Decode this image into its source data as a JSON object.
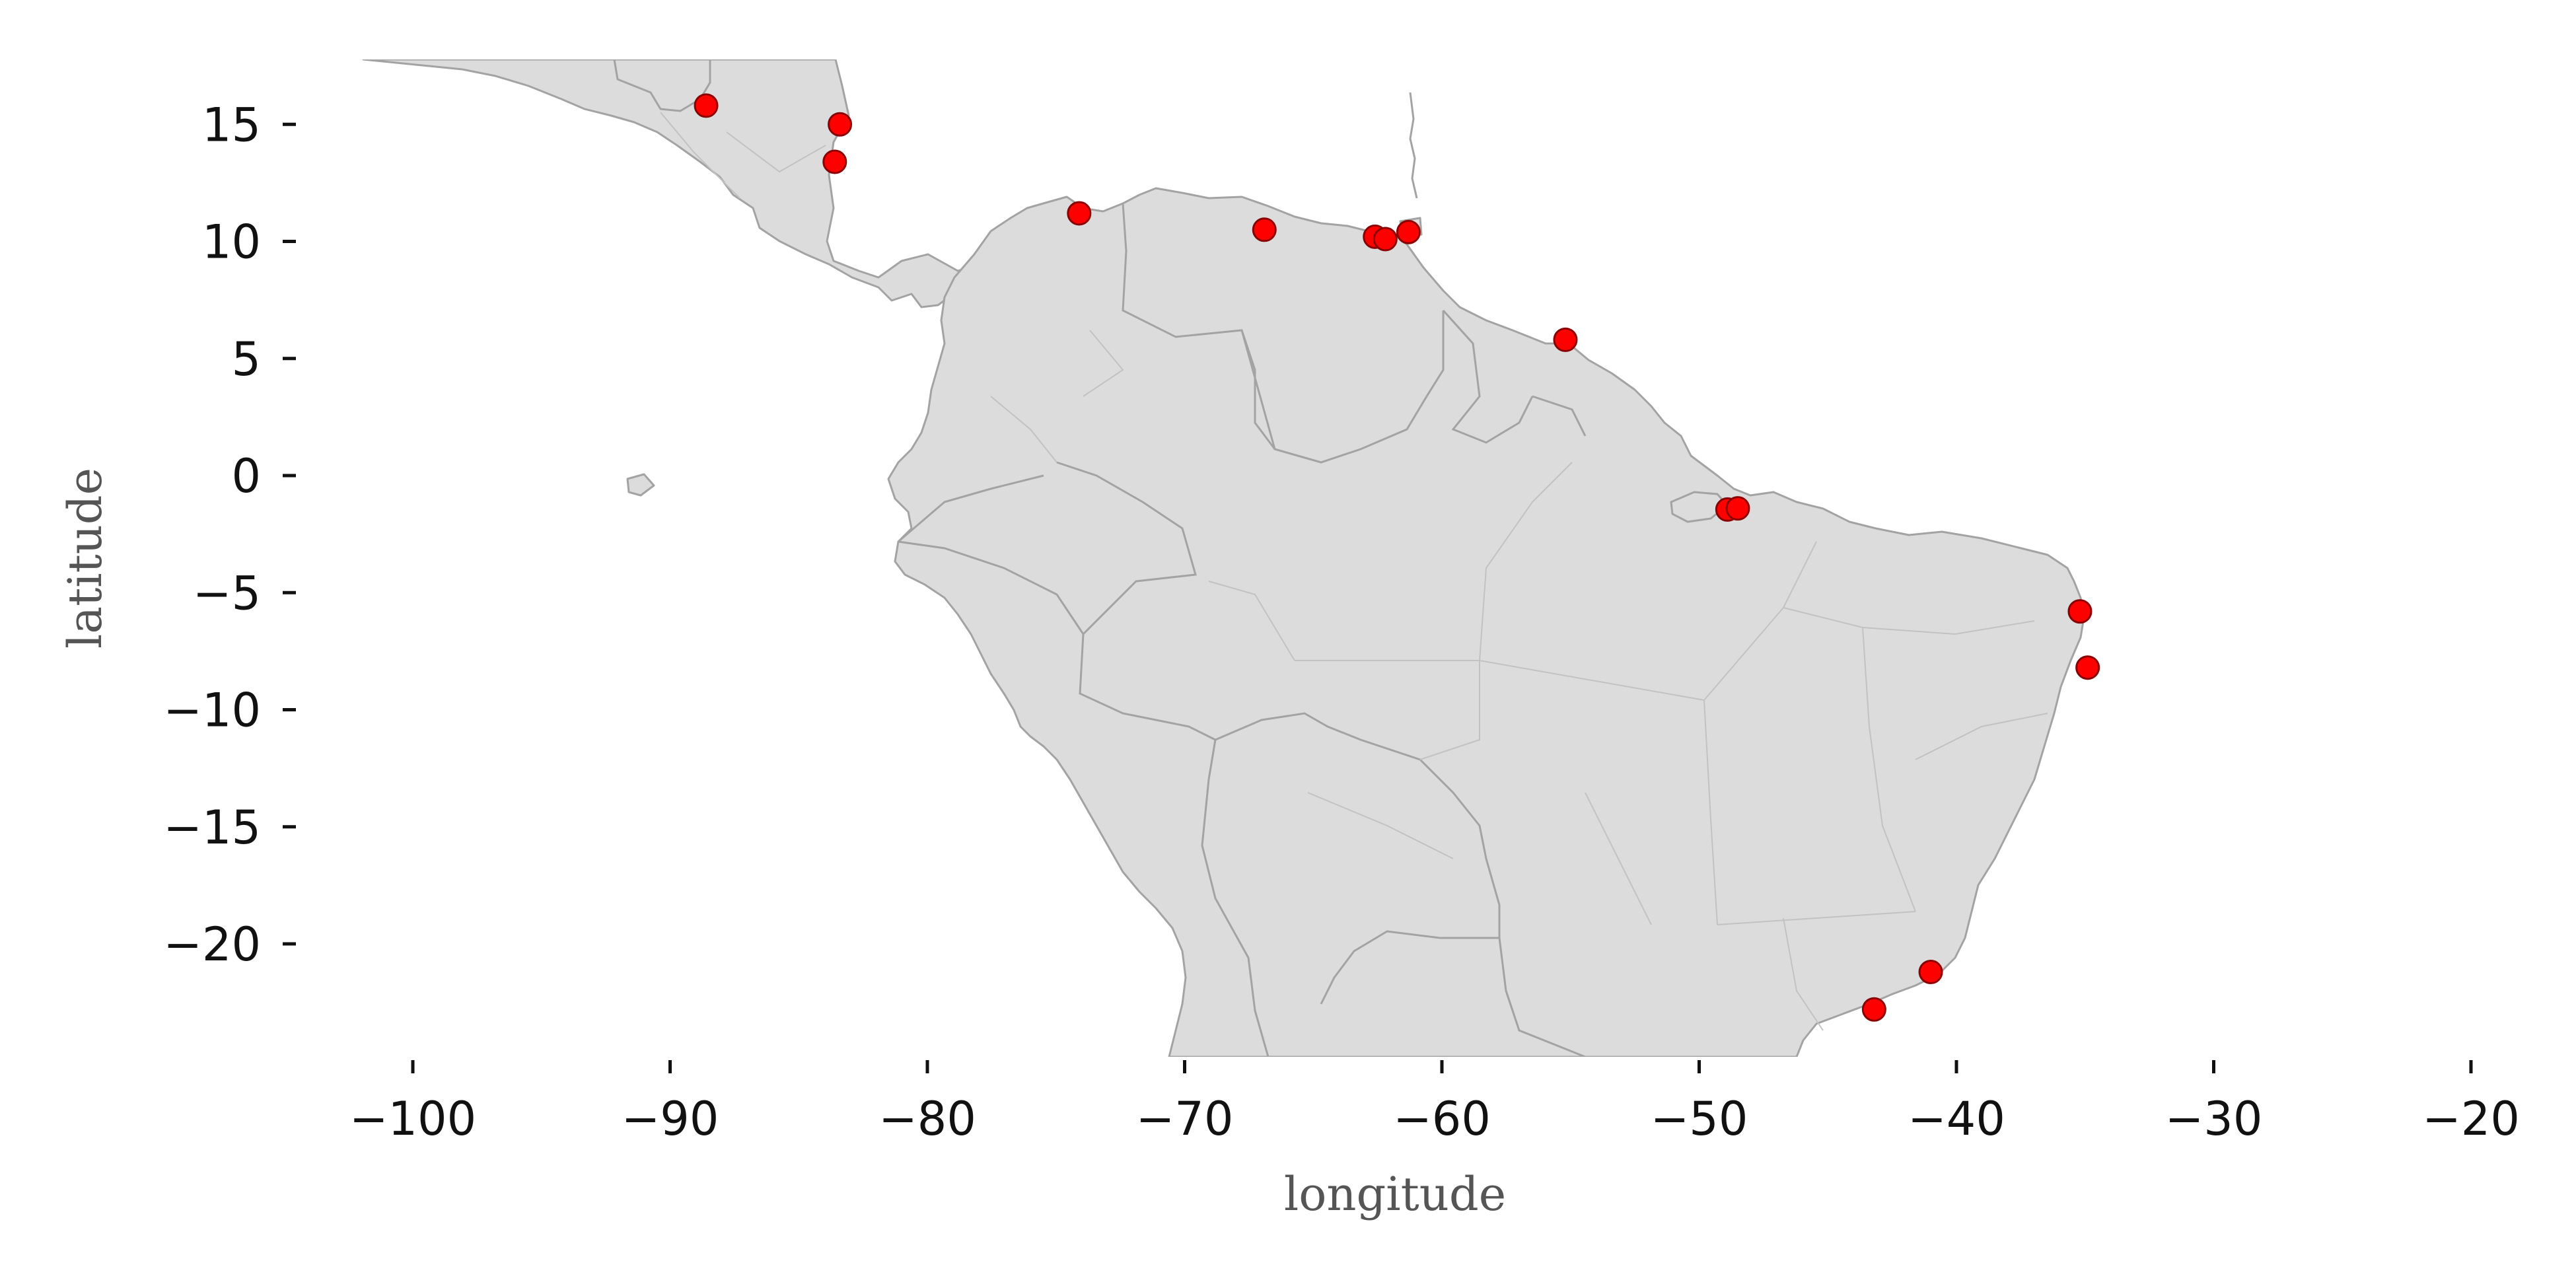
{
  "chart_data": {
    "type": "scatter",
    "title": "",
    "xlabel": "longitude",
    "ylabel": "latitude",
    "xlim": [
      -105,
      -20
    ],
    "ylim": [
      -25,
      18
    ],
    "xticks": [
      -100,
      -90,
      -80,
      -70,
      -60,
      -50,
      -40,
      -30,
      -20
    ],
    "yticks": [
      15,
      10,
      5,
      0,
      -5,
      -10,
      -15,
      -20
    ],
    "xtick_labels": [
      "−100",
      "−90",
      "−80",
      "−70",
      "−60",
      "−50",
      "−40",
      "−30",
      "−20"
    ],
    "ytick_labels": [
      "15",
      "10",
      "5",
      "0",
      "−5",
      "−10",
      "−15",
      "−20"
    ],
    "grid": false,
    "basemap": "Central and South America administrative boundaries",
    "colors": {
      "point_fill": "#ff0000",
      "point_edge": "#8b0000",
      "land": "#dcdcdc",
      "border": "#a3a3a3"
    },
    "points": [
      {
        "lon": -88.6,
        "lat": 15.8
      },
      {
        "lon": -83.4,
        "lat": 15.0
      },
      {
        "lon": -83.6,
        "lat": 13.4
      },
      {
        "lon": -74.1,
        "lat": 11.2
      },
      {
        "lon": -66.9,
        "lat": 10.5
      },
      {
        "lon": -62.6,
        "lat": 10.2
      },
      {
        "lon": -62.2,
        "lat": 10.1
      },
      {
        "lon": -61.3,
        "lat": 10.4
      },
      {
        "lon": -55.2,
        "lat": 5.8
      },
      {
        "lon": -48.9,
        "lat": -1.45
      },
      {
        "lon": -48.5,
        "lat": -1.4
      },
      {
        "lon": -35.2,
        "lat": -5.8
      },
      {
        "lon": -34.9,
        "lat": -8.2
      },
      {
        "lon": -41.0,
        "lat": -21.2
      },
      {
        "lon": -43.2,
        "lat": -22.8
      }
    ]
  }
}
